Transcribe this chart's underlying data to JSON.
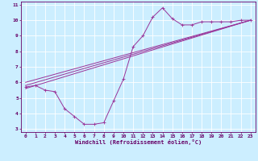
{
  "xlabel": "Windchill (Refroidissement éolien,°C)",
  "bg_color": "#cceeff",
  "grid_color": "#ffffff",
  "line_color": "#993399",
  "xlim": [
    -0.5,
    23.5
  ],
  "ylim": [
    2.8,
    11.2
  ],
  "xticks": [
    0,
    1,
    2,
    3,
    4,
    5,
    6,
    7,
    8,
    9,
    10,
    11,
    12,
    13,
    14,
    15,
    16,
    17,
    18,
    19,
    20,
    21,
    22,
    23
  ],
  "yticks": [
    3,
    4,
    5,
    6,
    7,
    8,
    9,
    10,
    11
  ],
  "curve1_x": [
    0,
    1,
    2,
    3,
    4,
    5,
    6,
    7,
    8,
    9,
    10,
    11,
    12,
    13,
    14,
    15,
    16,
    17,
    18,
    19,
    20,
    21,
    22,
    23
  ],
  "curve1_y": [
    5.7,
    5.8,
    5.5,
    5.4,
    4.3,
    3.8,
    3.3,
    3.3,
    3.4,
    4.8,
    6.2,
    8.3,
    9.0,
    10.2,
    10.8,
    10.1,
    9.7,
    9.7,
    9.9,
    9.9,
    9.9,
    9.9,
    10.0,
    10.0
  ],
  "curve2_x": [
    0,
    23
  ],
  "curve2_y": [
    6.0,
    10.0
  ],
  "curve3_x": [
    0,
    23
  ],
  "curve3_y": [
    5.8,
    10.0
  ],
  "curve4_x": [
    0,
    23
  ],
  "curve4_y": [
    5.6,
    10.0
  ],
  "xlabel_fontsize": 5.0,
  "tick_fontsize": 4.5
}
